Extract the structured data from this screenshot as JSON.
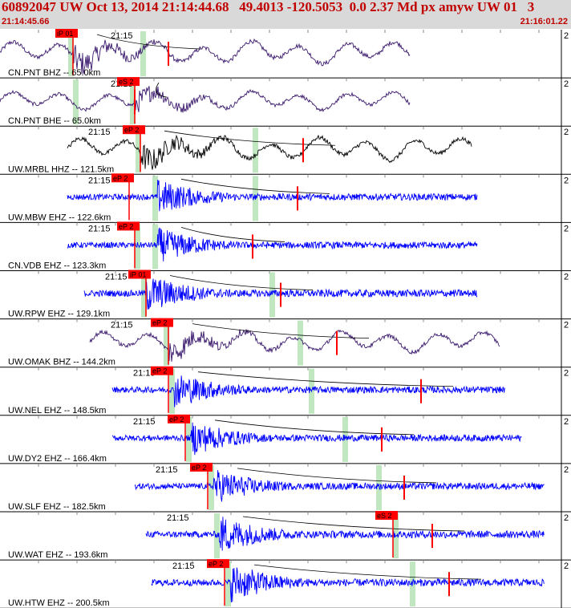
{
  "header": {
    "title": "60892047 UW Oct 13, 2014 21:14:44.68   49.4013 -120.5053  0.0 2.37 Md px amyw UW 01   3",
    "start_time": "21:14:45.66",
    "end_time": "21:16:01.22"
  },
  "chart_data": {
    "type": "line",
    "time_range": [
      "21:14:45.66",
      "21:16:01.22"
    ],
    "tick_label": "21:15",
    "panel_side_label": "2",
    "colors": {
      "header_bg": "#d9d9d9",
      "header_text": "#c00000",
      "trace_purple": "#3b1a6e",
      "trace_black": "#000000",
      "trace_blue": "#0000ff",
      "pick": "#ff0000",
      "window": "#b5e3b5",
      "grid": "#888888"
    },
    "channels": [
      {
        "label": "CN.PNT BHZ --  65.0km",
        "pick_label": "iP 01",
        "color": "purple",
        "amp": 0.55,
        "start": 0.0,
        "end": 0.73,
        "onset": 0.13,
        "low_freq": true,
        "pick_t": 0.13,
        "s_t": 0.3,
        "window_t": 0.25
      },
      {
        "label": "CN.PNT BHE --  65.0km",
        "pick_label": "eS 2",
        "color": "purple",
        "amp": 0.45,
        "start": 0.0,
        "end": 0.73,
        "onset": 0.24,
        "low_freq": true,
        "pick_t": 0.24,
        "s_t": 0.24,
        "window_t": 0.13
      },
      {
        "label": "UW.MRBL HHZ -- 121.5km",
        "pick_label": "eP 2",
        "color": "black",
        "amp": 0.55,
        "start": 0.12,
        "end": 0.84,
        "onset": 0.25,
        "low_freq": true,
        "pick_t": 0.25,
        "s_t": 0.54,
        "window_t": 0.45
      },
      {
        "label": "UW.MBW EHZ -- 122.6km",
        "pick_label": "eP 2",
        "color": "blue",
        "amp": 0.5,
        "start": 0.12,
        "end": 0.85,
        "onset": 0.28,
        "low_freq": false,
        "pick_t": 0.23,
        "s_t": 0.53,
        "window_t": 0.45
      },
      {
        "label": "CN.VDB EHZ -- 123.3km",
        "pick_label": "eP 2",
        "color": "blue",
        "amp": 0.5,
        "start": 0.12,
        "end": 0.85,
        "onset": 0.28,
        "low_freq": false,
        "pick_t": 0.24,
        "s_t": 0.45,
        "window_t": 0.24
      },
      {
        "label": "UW.RPW EHZ -- 129.1km",
        "pick_label": "iP 01",
        "color": "blue",
        "amp": 0.55,
        "start": 0.15,
        "end": 0.85,
        "onset": 0.26,
        "low_freq": false,
        "pick_t": 0.26,
        "s_t": 0.5,
        "window_t": 0.48
      },
      {
        "label": "UW.OMAK BHZ -- 144.2km",
        "pick_label": "eP 2",
        "color": "purple",
        "amp": 0.5,
        "start": 0.16,
        "end": 0.89,
        "onset": 0.3,
        "low_freq": true,
        "pick_t": 0.3,
        "s_t": 0.6,
        "window_t": 0.53
      },
      {
        "label": "UW.NEL EHZ -- 148.5km",
        "pick_label": "eP 2",
        "color": "blue",
        "amp": 0.5,
        "start": 0.2,
        "end": 0.9,
        "onset": 0.31,
        "low_freq": false,
        "pick_t": 0.3,
        "s_t": 0.75,
        "window_t": 0.55
      },
      {
        "label": "UW.DY2 EHZ -- 166.4km",
        "pick_label": "eP 2",
        "color": "blue",
        "amp": 0.5,
        "start": 0.2,
        "end": 0.93,
        "onset": 0.34,
        "low_freq": false,
        "pick_t": 0.33,
        "s_t": 0.68,
        "window_t": 0.61
      },
      {
        "label": "UW.SLF EHZ -- 182.5km",
        "pick_label": "eP 2",
        "color": "blue",
        "amp": 0.5,
        "start": 0.24,
        "end": 0.97,
        "onset": 0.38,
        "low_freq": false,
        "pick_t": 0.37,
        "s_t": 0.72,
        "window_t": 0.67
      },
      {
        "label": "UW.WAT EHZ -- 193.6km",
        "pick_label": "eS 2",
        "color": "blue",
        "amp": 0.55,
        "start": 0.26,
        "end": 0.97,
        "onset": 0.39,
        "low_freq": false,
        "pick_t": 0.7,
        "s_t": 0.77,
        "window_t": 0.7
      },
      {
        "label": "UW.HTW EHZ -- 200.5km",
        "pick_label": "eP 2",
        "color": "blue",
        "amp": 0.55,
        "start": 0.27,
        "end": 0.97,
        "onset": 0.41,
        "low_freq": false,
        "pick_t": 0.4,
        "s_t": 0.8,
        "window_t": 0.73
      }
    ]
  }
}
